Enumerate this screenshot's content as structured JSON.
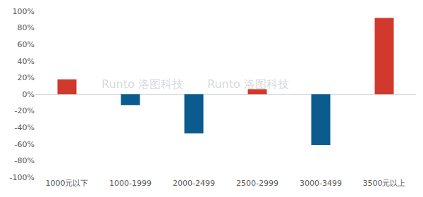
{
  "chart_data": {
    "type": "bar",
    "categories": [
      "1000元以下",
      "1000-1999",
      "2000-2499",
      "2500-2999",
      "3000-3499",
      "3500元以上"
    ],
    "values": [
      18,
      -13,
      -47,
      6,
      -61,
      92
    ],
    "colors": [
      "#d0392b",
      "#0b5b8e",
      "#0b5b8e",
      "#d0392b",
      "#0b5b8e",
      "#d0392b"
    ],
    "ylim": [
      -100,
      100
    ],
    "yticks": [
      {
        "value": -100,
        "label": "-100%"
      },
      {
        "value": -80,
        "label": "-80%"
      },
      {
        "value": -60,
        "label": "-60%"
      },
      {
        "value": -40,
        "label": "-40%"
      },
      {
        "value": -20,
        "label": "-20%"
      },
      {
        "value": 0,
        "label": "0%"
      },
      {
        "value": 20,
        "label": "20%"
      },
      {
        "value": 40,
        "label": "40%"
      },
      {
        "value": 60,
        "label": "60%"
      },
      {
        "value": 80,
        "label": "80%"
      },
      {
        "value": 100,
        "label": "100%"
      }
    ],
    "grid": false,
    "annotations": [
      "Runto 洛图科技",
      "Runto 洛图科技"
    ]
  }
}
